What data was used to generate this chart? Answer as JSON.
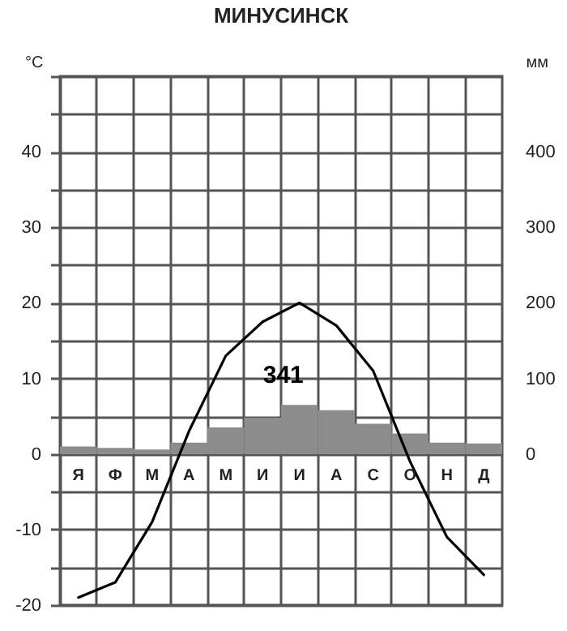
{
  "chart_data": {
    "type": "bar",
    "title": "МИНУСИНСК",
    "ylabel": "°C",
    "y2label": "мм",
    "categories": [
      "Я",
      "Ф",
      "М",
      "А",
      "М",
      "И",
      "И",
      "А",
      "С",
      "О",
      "Н",
      "Д"
    ],
    "series": [
      {
        "axis": "y2",
        "color": "#8c8c8c",
        "values": [
          10,
          8,
          6,
          15,
          35,
          48,
          65,
          58,
          40,
          27,
          15,
          14
        ]
      },
      {
        "type": "line",
        "color": "#000000",
        "values": [
          -19,
          -17,
          -9,
          3,
          13,
          17.5,
          20,
          17,
          11,
          -1,
          -11,
          -16
        ]
      }
    ],
    "ylim": [
      -20,
      50
    ],
    "yticks": [
      -20,
      {
        "value": -15,
        "label": null
      },
      -10,
      {
        "value": -5,
        "label": null
      },
      0,
      {
        "value": 5,
        "label": null
      },
      10,
      {
        "value": 15,
        "label": null
      },
      20,
      {
        "value": 25,
        "label": null
      },
      30,
      {
        "value": 35,
        "label": null
      },
      40,
      {
        "value": 45,
        "label": null
      },
      {
        "value": 50,
        "label": null
      }
    ],
    "y2lim": [
      -200,
      500
    ],
    "y2ticks": [
      0,
      100,
      200,
      300,
      400
    ],
    "annotations": [
      "341"
    ],
    "grid": true
  }
}
